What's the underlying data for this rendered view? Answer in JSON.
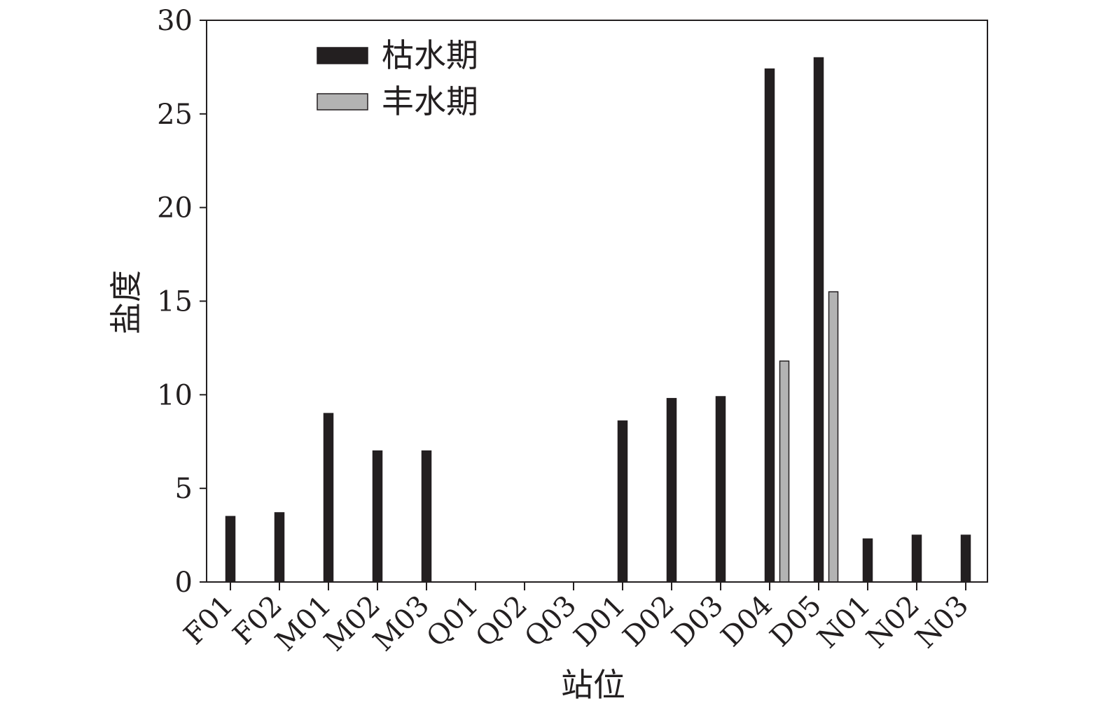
{
  "chart_data": {
    "type": "bar",
    "xlabel": "站位",
    "ylabel": "盐度",
    "ylim": [
      0,
      30
    ],
    "yticks": [
      0,
      5,
      10,
      15,
      20,
      25,
      30
    ],
    "categories": [
      "F01",
      "F02",
      "M01",
      "M02",
      "M03",
      "Q01",
      "Q02",
      "Q03",
      "D01",
      "D02",
      "D03",
      "D04",
      "D05",
      "N01",
      "N02",
      "N03"
    ],
    "series": [
      {
        "name": "枯水期",
        "color": "#231f20",
        "values": [
          3.5,
          3.7,
          9.0,
          7.0,
          7.0,
          0,
          0,
          0,
          8.6,
          9.8,
          9.9,
          27.4,
          28.0,
          2.3,
          2.5,
          2.5
        ]
      },
      {
        "name": "丰水期",
        "color": "#b3b3b3",
        "values": [
          0,
          0,
          0,
          0,
          0,
          0,
          0,
          0,
          0,
          0,
          0,
          11.8,
          15.5,
          0,
          0,
          0
        ]
      }
    ],
    "legend_position": "top-left",
    "grid": false
  }
}
